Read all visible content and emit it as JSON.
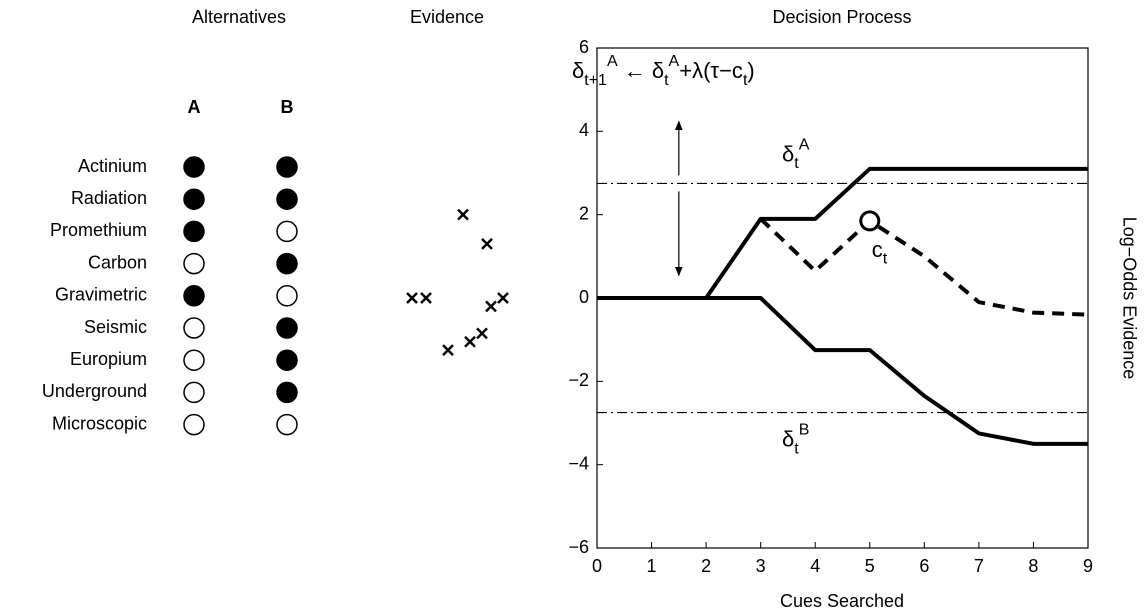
{
  "panel_titles": [
    "Alternatives",
    "Evidence",
    "Decision Process"
  ],
  "alternatives": {
    "columns": [
      "A",
      "B"
    ],
    "cues": [
      {
        "name": "Actinium",
        "A": true,
        "B": true
      },
      {
        "name": "Radiation",
        "A": true,
        "B": true
      },
      {
        "name": "Promethium",
        "A": true,
        "B": false
      },
      {
        "name": "Carbon",
        "A": false,
        "B": true
      },
      {
        "name": "Gravimetric",
        "A": true,
        "B": false
      },
      {
        "name": "Seismic",
        "A": false,
        "B": true
      },
      {
        "name": "Europium",
        "A": false,
        "B": true
      },
      {
        "name": "Underground",
        "A": false,
        "B": true
      },
      {
        "name": "Microscopic",
        "A": false,
        "B": false
      }
    ]
  },
  "evidence": {
    "values": [
      2,
      1.3,
      0,
      0,
      0,
      -0.2,
      -0.85,
      -1.05,
      -1.25
    ]
  },
  "chart_data": {
    "type": "line",
    "xlabel": "Cues Searched",
    "ylabel": "Log−Odds Evidence",
    "xlim": [
      0,
      9
    ],
    "xticks": [
      0,
      1,
      2,
      3,
      4,
      5,
      6,
      7,
      8,
      9
    ],
    "ylim": [
      -6,
      6
    ],
    "yticks": [
      {
        "value": -6,
        "label": "−6"
      },
      {
        "value": -4,
        "label": "−4"
      },
      {
        "value": -2,
        "label": "−2"
      },
      0,
      2,
      4,
      6
    ],
    "series": [
      {
        "color": "#000000",
        "style": "solid",
        "x": [
          0,
          2,
          3,
          4,
          5,
          9
        ],
        "values": [
          0,
          0,
          1.9,
          1.9,
          3.1,
          3.1
        ]
      },
      {
        "color": "#000000",
        "style": "dashed",
        "x": [
          3,
          4,
          5,
          6,
          7,
          8,
          9
        ],
        "values": [
          1.9,
          0.65,
          1.85,
          1.0,
          -0.1,
          -0.35,
          -0.4
        ]
      },
      {
        "color": "#000000",
        "style": "solid",
        "x": [
          0,
          3,
          4,
          5,
          6,
          7,
          8,
          9
        ],
        "values": [
          0,
          0,
          -1.25,
          -1.25,
          -2.35,
          -3.25,
          -3.5,
          -3.5
        ]
      }
    ],
    "thresholds": [
      {
        "value": 2.75,
        "label": [
          {
            "text": "δ",
            "pos": "base"
          },
          {
            "text": "t",
            "pos": "sub"
          },
          {
            "text": "A",
            "pos": "sup"
          }
        ]
      },
      {
        "value": -2.75,
        "label": [
          {
            "text": "δ",
            "pos": "base"
          },
          {
            "text": "t",
            "pos": "sub"
          },
          {
            "text": "B",
            "pos": "sup"
          }
        ]
      }
    ],
    "marker": {
      "x": 5,
      "value": 1.85,
      "label": [
        {
          "text": "c",
          "pos": "base"
        },
        {
          "text": "t",
          "pos": "sub"
        }
      ]
    },
    "update_rule": [
      {
        "text": "δ",
        "pos": "base"
      },
      {
        "text": "t+1",
        "pos": "sub"
      },
      {
        "text": "A",
        "pos": "sup"
      },
      {
        "text": " ← δ",
        "pos": "base"
      },
      {
        "text": "t",
        "pos": "sub"
      },
      {
        "text": "A",
        "pos": "sup"
      },
      {
        "text": "+λ(τ−c",
        "pos": "base"
      },
      {
        "text": "t",
        "pos": "sub"
      },
      {
        "text": ")",
        "pos": "base"
      }
    ]
  }
}
